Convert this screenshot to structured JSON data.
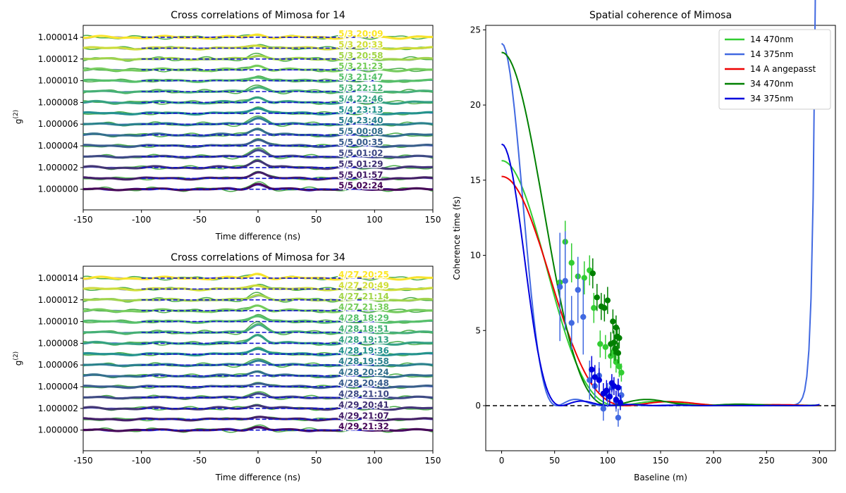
{
  "chart_data": [
    {
      "type": "line",
      "title": "Cross correlations of Mimosa for 14",
      "xlabel": "Time difference (ns)",
      "ylabel": "g(2)",
      "xlim": [
        -150,
        150
      ],
      "ylim": [
        0.9999981,
        1.0000151
      ],
      "x_ticks": [
        -150,
        -100,
        -50,
        0,
        50,
        100,
        150
      ],
      "y_ticks": [
        1.0,
        1.000002,
        1.000004,
        1.000006,
        1.000008,
        1.00001,
        1.000012,
        1.000014
      ],
      "y_tick_labels": [
        "1.000000",
        "1.000002",
        "1.000004",
        "1.000006",
        "1.000008",
        "1.000010",
        "1.000012",
        "1.000014"
      ],
      "grid": false,
      "series": [
        {
          "name": "5/3 20:09",
          "offset": 1.000014,
          "peak": 2.5e-07
        },
        {
          "name": "5/3 20:33",
          "offset": 1.000013,
          "peak": 3e-07
        },
        {
          "name": "5/3 20:58",
          "offset": 1.000012,
          "peak": 3.5e-07
        },
        {
          "name": "5/3 21:23",
          "offset": 1.000011,
          "peak": 4e-07
        },
        {
          "name": "5/3 21:47",
          "offset": 1.00001,
          "peak": 4e-07
        },
        {
          "name": "5/3 22:12",
          "offset": 1.000009,
          "peak": 4.5e-07
        },
        {
          "name": "5/4 22:46",
          "offset": 1.000008,
          "peak": 5e-07
        },
        {
          "name": "5/4 23:13",
          "offset": 1.000007,
          "peak": 5.5e-07
        },
        {
          "name": "5/4 23:40",
          "offset": 1.000006,
          "peak": 6e-07
        },
        {
          "name": "5/5 00:08",
          "offset": 1.000005,
          "peak": 6e-07
        },
        {
          "name": "5/5 00:35",
          "offset": 1.000004,
          "peak": 6.5e-07
        },
        {
          "name": "5/5 01:02",
          "offset": 1.000003,
          "peak": 6.5e-07
        },
        {
          "name": "5/5 01:29",
          "offset": 1.000002,
          "peak": 7e-07
        },
        {
          "name": "5/5 01:57",
          "offset": 1.000001,
          "peak": 6.5e-07
        },
        {
          "name": "5/5 02:24",
          "offset": 1.0,
          "peak": 5e-07
        }
      ]
    },
    {
      "type": "line",
      "title": "Cross correlations of Mimosa for 34",
      "xlabel": "Time difference (ns)",
      "ylabel": "g(2)",
      "xlim": [
        -150,
        150
      ],
      "ylim": [
        0.9999981,
        1.0000151
      ],
      "x_ticks": [
        -150,
        -100,
        -50,
        0,
        50,
        100,
        150
      ],
      "y_ticks": [
        1.0,
        1.000002,
        1.000004,
        1.000006,
        1.000008,
        1.00001,
        1.000012,
        1.000014
      ],
      "y_tick_labels": [
        "1.000000",
        "1.000002",
        "1.000004",
        "1.000006",
        "1.000008",
        "1.000010",
        "1.000012",
        "1.000014"
      ],
      "grid": false,
      "series": [
        {
          "name": "4/27 20:25",
          "offset": 1.000014,
          "peak": 4e-07
        },
        {
          "name": "4/27 20:49",
          "offset": 1.000013,
          "peak": 4e-07
        },
        {
          "name": "4/27 21:14",
          "offset": 1.000012,
          "peak": 5e-07
        },
        {
          "name": "4/27 21:38",
          "offset": 1.000011,
          "peak": 5e-07
        },
        {
          "name": "4/28 18:29",
          "offset": 1.00001,
          "peak": 6e-07
        },
        {
          "name": "4/28 18:51",
          "offset": 1.000009,
          "peak": 8e-07
        },
        {
          "name": "4/28 19:13",
          "offset": 1.000008,
          "peak": 8e-07
        },
        {
          "name": "4/28 19:36",
          "offset": 1.000007,
          "peak": 6e-07
        },
        {
          "name": "4/28 19:58",
          "offset": 1.000006,
          "peak": 4.5e-07
        },
        {
          "name": "4/28 20:24",
          "offset": 1.000005,
          "peak": 4.5e-07
        },
        {
          "name": "4/28 20:48",
          "offset": 1.000004,
          "peak": 4e-07
        },
        {
          "name": "4/28 21:10",
          "offset": 1.000003,
          "peak": 4e-07
        },
        {
          "name": "4/29 20:41",
          "offset": 1.000002,
          "peak": 3.5e-07
        },
        {
          "name": "4/29 21:07",
          "offset": 1.000001,
          "peak": 3e-07
        },
        {
          "name": "4/29 21:32",
          "offset": 1.0,
          "peak": 3e-07
        }
      ]
    },
    {
      "type": "scatter",
      "title": "Spatial coherence of Mimosa",
      "xlabel": "Baseline (m)",
      "ylabel": "Coherence time (fs)",
      "xlim": [
        -15,
        315
      ],
      "ylim": [
        -3,
        25.3
      ],
      "x_ticks": [
        0,
        50,
        100,
        150,
        200,
        250,
        300
      ],
      "y_ticks": [
        0,
        5,
        10,
        15,
        20,
        25
      ],
      "grid": false,
      "legend_position": "top-right",
      "reference_line": {
        "y": 0,
        "style": "dashed",
        "color": "#000000"
      },
      "series": [
        {
          "name": "14 470nm",
          "color": "#32cd32",
          "amplitude": 16.3,
          "scale": 110,
          "zero": 128,
          "points": [
            {
              "x": 55,
              "y": 8.2,
              "err": 1.5
            },
            {
              "x": 60,
              "y": 10.9,
              "err": 1.4
            },
            {
              "x": 66,
              "y": 9.5,
              "err": 1.3
            },
            {
              "x": 72,
              "y": 8.6,
              "err": 1.2
            },
            {
              "x": 78,
              "y": 8.5,
              "err": 1.1
            },
            {
              "x": 83,
              "y": 9.0,
              "err": 1.0
            },
            {
              "x": 87,
              "y": 6.5,
              "err": 1.0
            },
            {
              "x": 93,
              "y": 4.1,
              "err": 0.9
            },
            {
              "x": 98,
              "y": 3.9,
              "err": 0.8
            },
            {
              "x": 103,
              "y": 3.3,
              "err": 0.8
            },
            {
              "x": 106,
              "y": 3.6,
              "err": 0.7
            },
            {
              "x": 108,
              "y": 2.9,
              "err": 0.7
            },
            {
              "x": 111,
              "y": 2.6,
              "err": 0.7
            },
            {
              "x": 113,
              "y": 2.2,
              "err": 0.6
            }
          ]
        },
        {
          "name": "14 375nm",
          "color": "#4169e1",
          "amplitude": 24.1,
          "scale": 52,
          "zero": 98,
          "points": [
            {
              "x": 55,
              "y": 7.9,
              "err": 3.6
            },
            {
              "x": 60,
              "y": 8.3,
              "err": 3.3
            },
            {
              "x": 66,
              "y": 5.5,
              "err": 1.8
            },
            {
              "x": 72,
              "y": 7.7,
              "err": 2.2
            },
            {
              "x": 77,
              "y": 5.9,
              "err": 2.5
            },
            {
              "x": 83,
              "y": 1.7,
              "err": 1.3
            },
            {
              "x": 88,
              "y": 1.3,
              "err": 0.9
            },
            {
              "x": 92,
              "y": 2.0,
              "err": 0.9
            },
            {
              "x": 96,
              "y": -0.2,
              "err": 0.8
            },
            {
              "x": 100,
              "y": 0.7,
              "err": 0.8
            },
            {
              "x": 104,
              "y": 1.2,
              "err": 0.7
            },
            {
              "x": 108,
              "y": 0.3,
              "err": 0.7
            },
            {
              "x": 110,
              "y": -0.8,
              "err": 0.6
            },
            {
              "x": 113,
              "y": 0.7,
              "err": 0.6
            }
          ]
        },
        {
          "name": "14 A angepasst",
          "color": "#ee0000",
          "amplitude": 15.25,
          "scale": 118,
          "zero": 135,
          "points": []
        },
        {
          "name": "34 470nm",
          "color": "#008000",
          "amplitude": 23.5,
          "scale": 102,
          "zero": 135,
          "points": [
            {
              "x": 86,
              "y": 8.8,
              "err": 1.0
            },
            {
              "x": 90,
              "y": 7.2,
              "err": 0.9
            },
            {
              "x": 94,
              "y": 6.6,
              "err": 0.9
            },
            {
              "x": 97,
              "y": 6.5,
              "err": 0.9
            },
            {
              "x": 100,
              "y": 7.0,
              "err": 0.9
            },
            {
              "x": 103,
              "y": 4.1,
              "err": 0.8
            },
            {
              "x": 105,
              "y": 5.6,
              "err": 0.8
            },
            {
              "x": 106,
              "y": 4.2,
              "err": 0.8
            },
            {
              "x": 107,
              "y": 3.8,
              "err": 0.8
            },
            {
              "x": 108,
              "y": 5.2,
              "err": 0.8
            },
            {
              "x": 109,
              "y": 4.6,
              "err": 0.7
            },
            {
              "x": 110,
              "y": 3.5,
              "err": 0.7
            },
            {
              "x": 111,
              "y": 4.5,
              "err": 0.7
            }
          ]
        },
        {
          "name": "34 375nm",
          "color": "#0000dd",
          "amplitude": 17.4,
          "scale": 56,
          "zero": 102,
          "points": [
            {
              "x": 85,
              "y": 2.4,
              "err": 0.9
            },
            {
              "x": 88,
              "y": 1.9,
              "err": 0.8
            },
            {
              "x": 92,
              "y": 1.7,
              "err": 0.8
            },
            {
              "x": 96,
              "y": 0.8,
              "err": 0.7
            },
            {
              "x": 99,
              "y": 1.0,
              "err": 0.7
            },
            {
              "x": 102,
              "y": 0.6,
              "err": 0.6
            },
            {
              "x": 104,
              "y": 1.5,
              "err": 0.6
            },
            {
              "x": 106,
              "y": 1.3,
              "err": 0.6
            },
            {
              "x": 108,
              "y": 0.4,
              "err": 0.6
            },
            {
              "x": 110,
              "y": 1.2,
              "err": 0.6
            },
            {
              "x": 112,
              "y": 0.2,
              "err": 0.5
            }
          ]
        }
      ]
    }
  ]
}
